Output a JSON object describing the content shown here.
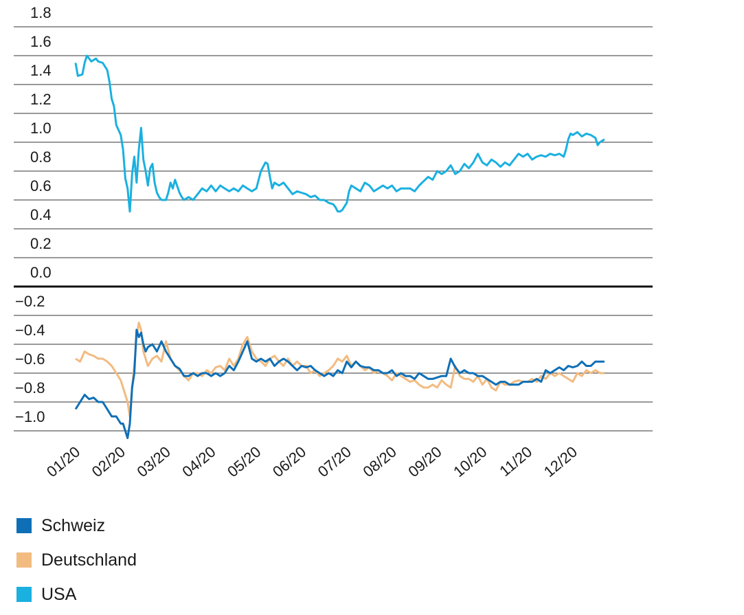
{
  "chart_data": {
    "type": "line",
    "title": "",
    "xlabel": "",
    "ylabel": "",
    "ylim": [
      -1.1,
      1.8
    ],
    "yticks": [
      1.8,
      1.6,
      1.4,
      1.2,
      1.0,
      0.8,
      0.6,
      0.4,
      0.2,
      0.0,
      -0.2,
      -0.4,
      -0.6,
      -0.8,
      -1.0
    ],
    "ytick_labels": [
      "1.8",
      "1.6",
      "1.4",
      "1.2",
      "1.0",
      "0.8",
      "0.6",
      "0.4",
      "0.2",
      "0.0",
      "−0.2",
      "−0.4",
      "−0.6",
      "−0.8",
      "−1.0"
    ],
    "categories": [
      "01/20",
      "02/20",
      "03/20",
      "04/20",
      "05/20",
      "06/20",
      "07/20",
      "08/20",
      "09/20",
      "10/20",
      "11/20",
      "12/20"
    ],
    "x_range": [
      0,
      11.8
    ],
    "grid": true,
    "series": [
      {
        "name": "USA",
        "color": "#1ab0e0",
        "x": [
          0,
          0.05,
          0.15,
          0.2,
          0.25,
          0.35,
          0.45,
          0.5,
          0.6,
          0.7,
          0.75,
          0.8,
          0.85,
          0.9,
          1.0,
          1.05,
          1.1,
          1.15,
          1.2,
          1.25,
          1.3,
          1.35,
          1.4,
          1.45,
          1.5,
          1.55,
          1.6,
          1.65,
          1.7,
          1.75,
          1.8,
          1.85,
          1.9,
          2.0,
          2.05,
          2.1,
          2.15,
          2.2,
          2.3,
          2.35,
          2.4,
          2.5,
          2.6,
          2.7,
          2.8,
          2.9,
          3.0,
          3.1,
          3.2,
          3.3,
          3.4,
          3.5,
          3.6,
          3.7,
          3.8,
          3.9,
          4.0,
          4.1,
          4.2,
          4.25,
          4.3,
          4.35,
          4.4,
          4.5,
          4.6,
          4.7,
          4.8,
          4.9,
          5.0,
          5.1,
          5.2,
          5.3,
          5.4,
          5.5,
          5.6,
          5.7,
          5.75,
          5.8,
          5.85,
          5.9,
          6.0,
          6.05,
          6.1,
          6.2,
          6.3,
          6.4,
          6.5,
          6.6,
          6.7,
          6.8,
          6.9,
          7.0,
          7.1,
          7.2,
          7.3,
          7.4,
          7.5,
          7.6,
          7.7,
          7.8,
          7.9,
          8.0,
          8.1,
          8.2,
          8.3,
          8.4,
          8.5,
          8.6,
          8.7,
          8.8,
          8.9,
          9.0,
          9.1,
          9.2,
          9.3,
          9.4,
          9.5,
          9.6,
          9.7,
          9.8,
          9.9,
          10.0,
          10.1,
          10.2,
          10.3,
          10.4,
          10.5,
          10.6,
          10.7,
          10.8,
          10.85,
          10.9,
          10.95,
          11.0,
          11.1,
          11.2,
          11.3,
          11.4,
          11.5,
          11.55,
          11.6,
          11.7
        ],
        "values": [
          1.55,
          1.46,
          1.47,
          1.55,
          1.6,
          1.56,
          1.58,
          1.56,
          1.55,
          1.5,
          1.42,
          1.3,
          1.25,
          1.12,
          1.05,
          0.95,
          0.75,
          0.68,
          0.52,
          0.78,
          0.9,
          0.72,
          0.95,
          1.1,
          0.88,
          0.8,
          0.7,
          0.82,
          0.85,
          0.72,
          0.65,
          0.62,
          0.6,
          0.6,
          0.65,
          0.72,
          0.68,
          0.74,
          0.65,
          0.62,
          0.6,
          0.62,
          0.6,
          0.64,
          0.68,
          0.66,
          0.7,
          0.66,
          0.7,
          0.68,
          0.66,
          0.68,
          0.66,
          0.7,
          0.68,
          0.66,
          0.68,
          0.8,
          0.86,
          0.85,
          0.76,
          0.68,
          0.72,
          0.7,
          0.72,
          0.68,
          0.64,
          0.66,
          0.65,
          0.64,
          0.62,
          0.63,
          0.6,
          0.6,
          0.58,
          0.57,
          0.55,
          0.52,
          0.52,
          0.53,
          0.58,
          0.66,
          0.7,
          0.68,
          0.66,
          0.72,
          0.7,
          0.66,
          0.68,
          0.7,
          0.68,
          0.7,
          0.66,
          0.68,
          0.68,
          0.68,
          0.66,
          0.7,
          0.73,
          0.76,
          0.74,
          0.8,
          0.78,
          0.8,
          0.84,
          0.78,
          0.8,
          0.85,
          0.82,
          0.86,
          0.92,
          0.86,
          0.84,
          0.88,
          0.86,
          0.83,
          0.86,
          0.84,
          0.88,
          0.92,
          0.9,
          0.92,
          0.88,
          0.9,
          0.91,
          0.9,
          0.92,
          0.91,
          0.92,
          0.9,
          0.95,
          1.02,
          1.06,
          1.05,
          1.07,
          1.04,
          1.06,
          1.05,
          1.03,
          0.98,
          1.0,
          1.02
        ]
      },
      {
        "name": "Deutschland",
        "color": "#f2bb80",
        "x": [
          0,
          0.1,
          0.2,
          0.3,
          0.4,
          0.5,
          0.6,
          0.7,
          0.8,
          0.9,
          1.0,
          1.05,
          1.1,
          1.15,
          1.2,
          1.25,
          1.3,
          1.35,
          1.4,
          1.45,
          1.5,
          1.55,
          1.6,
          1.7,
          1.8,
          1.9,
          2.0,
          2.1,
          2.2,
          2.3,
          2.4,
          2.5,
          2.6,
          2.7,
          2.8,
          2.9,
          3.0,
          3.1,
          3.2,
          3.3,
          3.4,
          3.5,
          3.6,
          3.7,
          3.8,
          3.9,
          4.0,
          4.1,
          4.2,
          4.3,
          4.4,
          4.5,
          4.6,
          4.7,
          4.8,
          4.9,
          5.0,
          5.1,
          5.2,
          5.3,
          5.4,
          5.5,
          5.6,
          5.7,
          5.8,
          5.9,
          6.0,
          6.1,
          6.2,
          6.3,
          6.4,
          6.5,
          6.6,
          6.7,
          6.8,
          6.9,
          7.0,
          7.1,
          7.2,
          7.3,
          7.4,
          7.5,
          7.6,
          7.7,
          7.8,
          7.9,
          8.0,
          8.1,
          8.2,
          8.3,
          8.4,
          8.5,
          8.6,
          8.7,
          8.8,
          8.9,
          9.0,
          9.1,
          9.2,
          9.3,
          9.4,
          9.5,
          9.6,
          9.7,
          9.8,
          9.9,
          10.0,
          10.1,
          10.2,
          10.3,
          10.4,
          10.5,
          10.6,
          10.7,
          10.8,
          10.9,
          11.0,
          11.1,
          11.2,
          11.3,
          11.4,
          11.5,
          11.6,
          11.7
        ],
        "values": [
          -0.5,
          -0.52,
          -0.45,
          -0.47,
          -0.48,
          -0.5,
          -0.5,
          -0.52,
          -0.55,
          -0.6,
          -0.65,
          -0.7,
          -0.75,
          -0.8,
          -0.9,
          -0.7,
          -0.55,
          -0.35,
          -0.25,
          -0.3,
          -0.45,
          -0.5,
          -0.55,
          -0.5,
          -0.48,
          -0.52,
          -0.38,
          -0.5,
          -0.55,
          -0.58,
          -0.62,
          -0.65,
          -0.6,
          -0.6,
          -0.62,
          -0.58,
          -0.6,
          -0.56,
          -0.55,
          -0.58,
          -0.5,
          -0.55,
          -0.5,
          -0.4,
          -0.35,
          -0.45,
          -0.5,
          -0.52,
          -0.55,
          -0.5,
          -0.48,
          -0.52,
          -0.55,
          -0.5,
          -0.55,
          -0.52,
          -0.55,
          -0.55,
          -0.6,
          -0.58,
          -0.62,
          -0.6,
          -0.58,
          -0.55,
          -0.5,
          -0.52,
          -0.48,
          -0.55,
          -0.52,
          -0.55,
          -0.58,
          -0.56,
          -0.6,
          -0.58,
          -0.6,
          -0.62,
          -0.65,
          -0.6,
          -0.62,
          -0.64,
          -0.66,
          -0.65,
          -0.68,
          -0.7,
          -0.7,
          -0.68,
          -0.7,
          -0.65,
          -0.68,
          -0.7,
          -0.55,
          -0.62,
          -0.64,
          -0.64,
          -0.66,
          -0.62,
          -0.68,
          -0.64,
          -0.7,
          -0.72,
          -0.66,
          -0.68,
          -0.68,
          -0.66,
          -0.65,
          -0.66,
          -0.66,
          -0.64,
          -0.66,
          -0.62,
          -0.64,
          -0.6,
          -0.62,
          -0.6,
          -0.62,
          -0.64,
          -0.66,
          -0.6,
          -0.62,
          -0.58,
          -0.6,
          -0.58,
          -0.6,
          -0.6
        ]
      },
      {
        "name": "Schweiz",
        "color": "#0f6fb6",
        "x": [
          0,
          0.1,
          0.2,
          0.3,
          0.4,
          0.5,
          0.6,
          0.7,
          0.8,
          0.9,
          1.0,
          1.05,
          1.1,
          1.15,
          1.2,
          1.25,
          1.3,
          1.35,
          1.4,
          1.45,
          1.5,
          1.55,
          1.6,
          1.7,
          1.8,
          1.9,
          2.0,
          2.1,
          2.2,
          2.3,
          2.4,
          2.5,
          2.6,
          2.7,
          2.8,
          2.9,
          3.0,
          3.1,
          3.2,
          3.3,
          3.4,
          3.5,
          3.6,
          3.7,
          3.8,
          3.9,
          4.0,
          4.1,
          4.2,
          4.3,
          4.4,
          4.5,
          4.6,
          4.7,
          4.8,
          4.9,
          5.0,
          5.1,
          5.2,
          5.3,
          5.4,
          5.5,
          5.6,
          5.7,
          5.8,
          5.9,
          6.0,
          6.1,
          6.2,
          6.3,
          6.4,
          6.5,
          6.6,
          6.7,
          6.8,
          6.9,
          7.0,
          7.1,
          7.2,
          7.3,
          7.4,
          7.5,
          7.6,
          7.7,
          7.8,
          7.9,
          8.0,
          8.1,
          8.2,
          8.3,
          8.4,
          8.5,
          8.6,
          8.7,
          8.8,
          8.9,
          9.0,
          9.1,
          9.2,
          9.3,
          9.4,
          9.5,
          9.6,
          9.7,
          9.8,
          9.9,
          10.0,
          10.1,
          10.2,
          10.3,
          10.4,
          10.5,
          10.6,
          10.7,
          10.8,
          10.9,
          11.0,
          11.1,
          11.2,
          11.3,
          11.4,
          11.5,
          11.6,
          11.7
        ],
        "values": [
          -0.85,
          -0.8,
          -0.75,
          -0.78,
          -0.77,
          -0.8,
          -0.8,
          -0.85,
          -0.9,
          -0.9,
          -0.95,
          -0.95,
          -1.0,
          -1.05,
          -0.95,
          -0.7,
          -0.6,
          -0.3,
          -0.35,
          -0.32,
          -0.4,
          -0.45,
          -0.42,
          -0.4,
          -0.45,
          -0.38,
          -0.45,
          -0.5,
          -0.55,
          -0.57,
          -0.62,
          -0.62,
          -0.6,
          -0.62,
          -0.6,
          -0.6,
          -0.62,
          -0.6,
          -0.62,
          -0.6,
          -0.55,
          -0.58,
          -0.52,
          -0.45,
          -0.38,
          -0.5,
          -0.52,
          -0.5,
          -0.52,
          -0.5,
          -0.55,
          -0.52,
          -0.5,
          -0.52,
          -0.55,
          -0.58,
          -0.55,
          -0.56,
          -0.55,
          -0.58,
          -0.6,
          -0.62,
          -0.6,
          -0.62,
          -0.58,
          -0.6,
          -0.52,
          -0.56,
          -0.52,
          -0.55,
          -0.56,
          -0.56,
          -0.58,
          -0.58,
          -0.6,
          -0.6,
          -0.58,
          -0.62,
          -0.6,
          -0.62,
          -0.62,
          -0.64,
          -0.6,
          -0.62,
          -0.64,
          -0.64,
          -0.63,
          -0.62,
          -0.62,
          -0.5,
          -0.56,
          -0.6,
          -0.58,
          -0.6,
          -0.6,
          -0.62,
          -0.62,
          -0.64,
          -0.66,
          -0.68,
          -0.66,
          -0.66,
          -0.68,
          -0.68,
          -0.68,
          -0.66,
          -0.66,
          -0.66,
          -0.64,
          -0.66,
          -0.58,
          -0.6,
          -0.58,
          -0.56,
          -0.58,
          -0.55,
          -0.56,
          -0.55,
          -0.52,
          -0.55,
          -0.55,
          -0.52,
          -0.52,
          -0.52
        ]
      }
    ]
  },
  "legend": {
    "items": [
      {
        "label": "Schweiz",
        "color": "#0f6fb6"
      },
      {
        "label": "Deutschland",
        "color": "#f2bb80"
      },
      {
        "label": "USA",
        "color": "#1ab0e0"
      }
    ]
  }
}
